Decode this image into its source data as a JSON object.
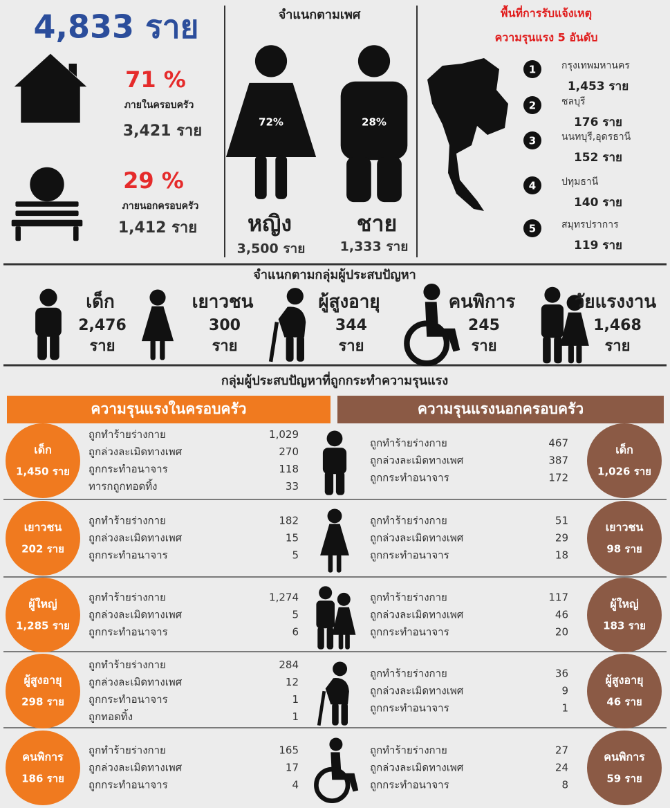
{
  "summary": {
    "total": "4,833 ราย",
    "inside": {
      "percent": "71 %",
      "label": "ภายในครอบครัว",
      "count": "3,421 ราย"
    },
    "outside": {
      "percent": "29 %",
      "label": "ภายนอกครอบครัว",
      "count": "1,412 ราย"
    }
  },
  "gender": {
    "title": "จำแนกตามเพศ",
    "female": {
      "percent": "72%",
      "label": "หญิง",
      "count": "3,500 ราย"
    },
    "male": {
      "percent": "28%",
      "label": "ชาย",
      "count": "1,333 ราย"
    }
  },
  "regions": {
    "title": [
      "พื้นที่การรับแจ้งเหตุ",
      "ความรุนแรง 5  อันดับ"
    ],
    "items": [
      {
        "rank": "1",
        "name": "กรุงเทพมหานคร",
        "count": "1,453 ราย"
      },
      {
        "rank": "2",
        "name": "ชลบุรี",
        "count": "176 ราย"
      },
      {
        "rank": "3",
        "name": "นนทบุรี,อุดรธานี",
        "count": "152 ราย"
      },
      {
        "rank": "4",
        "name": "ปทุมธานี",
        "count": "140 ราย"
      },
      {
        "rank": "5",
        "name": "สมุทรปราการ",
        "count": "119 ราย"
      }
    ]
  },
  "groups": {
    "title": "จำแนกตามกลุ่มผู้ประสบปัญหา",
    "unit": "ราย",
    "items": [
      {
        "name": "เด็ก",
        "count": "2,476"
      },
      {
        "name": "เยาวชน",
        "count": "300"
      },
      {
        "name": "ผู้สูงอายุ",
        "count": "344"
      },
      {
        "name": "คนพิการ",
        "count": "245"
      },
      {
        "name": "วัยแรงงาน",
        "count": "1,468"
      }
    ]
  },
  "violence": {
    "title": "กลุ่มผู้ประสบปัญหาที่ถูกกระทำความรุนแรง",
    "inside_header": "ความรุนแรงในครอบครัว",
    "outside_header": "ความรุนแรงนอกครอบครัว",
    "rows": [
      {
        "group": "เด็ก",
        "inside_total": "1,450 ราย",
        "outside_total": "1,026 ราย",
        "inside": [
          {
            "type": "ถูกทำร้ายร่างกาย",
            "count": "1,029"
          },
          {
            "type": "ถูกล่วงละเมิดทางเพศ",
            "count": "270"
          },
          {
            "type": "ถูกกระทำอนาจาร",
            "count": "118"
          },
          {
            "type": "ทารกถูกทอดทิ้ง",
            "count": "33"
          }
        ],
        "outside": [
          {
            "type": "ถูกทำร้ายร่างกาย",
            "count": "467"
          },
          {
            "type": "ถูกล่วงละเมิดทางเพศ",
            "count": "387"
          },
          {
            "type": "ถูกกระทำอนาจาร",
            "count": "172"
          }
        ]
      },
      {
        "group": "เยาวชน",
        "inside_total": "202 ราย",
        "outside_total": "98 ราย",
        "inside": [
          {
            "type": "ถูกทำร้ายร่างกาย",
            "count": "182"
          },
          {
            "type": "ถูกล่วงละเมิดทางเพศ",
            "count": "15"
          },
          {
            "type": "ถูกกระทำอนาจาร",
            "count": "5"
          }
        ],
        "outside": [
          {
            "type": "ถูกทำร้ายร่างกาย",
            "count": "51"
          },
          {
            "type": "ถูกล่วงละเมิดทางเพศ",
            "count": "29"
          },
          {
            "type": "ถูกกระทำอนาจาร",
            "count": "18"
          }
        ]
      },
      {
        "group": "ผู้ใหญ่",
        "inside_total": "1,285 ราย",
        "outside_total": "183 ราย",
        "inside": [
          {
            "type": "ถูกทำร้ายร่างกาย",
            "count": "1,274"
          },
          {
            "type": "ถูกล่วงละเมิดทางเพศ",
            "count": "5"
          },
          {
            "type": "ถูกกระทำอนาจาร",
            "count": "6"
          }
        ],
        "outside": [
          {
            "type": "ถูกทำร้ายร่างกาย",
            "count": "117"
          },
          {
            "type": "ถูกล่วงละเมิดทางเพศ",
            "count": "46"
          },
          {
            "type": "ถูกกระทำอนาจาร",
            "count": "20"
          }
        ]
      },
      {
        "group": "ผู้สูงอายุ",
        "inside_total": "298 ราย",
        "outside_total": "46 ราย",
        "inside": [
          {
            "type": "ถูกทำร้ายร่างกาย",
            "count": "284"
          },
          {
            "type": "ถูกล่วงละเมิดทางเพศ",
            "count": "12"
          },
          {
            "type": "ถูกกระทำอนาจาร",
            "count": "1"
          },
          {
            "type": "ถูกทอดทิ้ง",
            "count": "1"
          }
        ],
        "outside": [
          {
            "type": "ถูกทำร้ายร่างกาย",
            "count": "36"
          },
          {
            "type": "ถูกล่วงละเมิดทางเพศ",
            "count": "9"
          },
          {
            "type": "ถูกกระทำอนาจาร",
            "count": "1"
          }
        ]
      },
      {
        "group": "คนพิการ",
        "inside_total": "186 ราย",
        "outside_total": "59 ราย",
        "inside": [
          {
            "type": "ถูกทำร้ายร่างกาย",
            "count": "165"
          },
          {
            "type": "ถูกล่วงละเมิดทางเพศ",
            "count": "17"
          },
          {
            "type": "ถูกกระทำอนาจาร",
            "count": "4"
          }
        ],
        "outside": [
          {
            "type": "ถูกทำร้ายร่างกาย",
            "count": "27"
          },
          {
            "type": "ถูกล่วงละเมิดทางเพศ",
            "count": "24"
          },
          {
            "type": "ถูกกระทำอนาจาร",
            "count": "8"
          }
        ]
      }
    ]
  }
}
